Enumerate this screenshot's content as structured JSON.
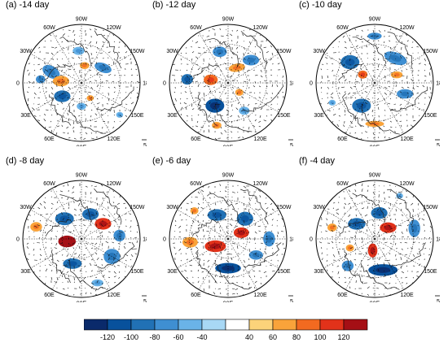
{
  "panels": [
    {
      "title": "(a) -14 day",
      "blobs": [
        {
          "r": 0.55,
          "a": 160,
          "rx": 0.16,
          "ry": 0.1,
          "rot": 30,
          "v": -60
        },
        {
          "r": 0.35,
          "a": 175,
          "rx": 0.14,
          "ry": 0.09,
          "rot": 0,
          "v": 60
        },
        {
          "r": 0.3,
          "a": 80,
          "rx": 0.08,
          "ry": 0.06,
          "rot": 0,
          "v": 60
        },
        {
          "r": 0.55,
          "a": 95,
          "rx": 0.1,
          "ry": 0.07,
          "rot": 0,
          "v": -40
        },
        {
          "r": 0.45,
          "a": 35,
          "rx": 0.15,
          "ry": 0.08,
          "rot": 20,
          "v": -60
        },
        {
          "r": 0.4,
          "a": 215,
          "rx": 0.14,
          "ry": 0.1,
          "rot": 0,
          "v": -80
        },
        {
          "r": 0.7,
          "a": 175,
          "rx": 0.08,
          "ry": 0.07,
          "rot": 0,
          "v": -60
        },
        {
          "r": 0.3,
          "a": 300,
          "rx": 0.06,
          "ry": 0.05,
          "rot": 0,
          "v": 60
        },
        {
          "r": 0.4,
          "a": 270,
          "rx": 0.08,
          "ry": 0.06,
          "rot": 0,
          "v": -40
        },
        {
          "r": 0.85,
          "a": 320,
          "rx": 0.06,
          "ry": 0.05,
          "rot": 0,
          "v": -40
        }
      ]
    },
    {
      "title": "(b) -12 day",
      "blobs": [
        {
          "r": 0.7,
          "a": 175,
          "rx": 0.1,
          "ry": 0.09,
          "rot": 0,
          "v": -80
        },
        {
          "r": 0.3,
          "a": 170,
          "rx": 0.12,
          "ry": 0.09,
          "rot": 0,
          "v": 80
        },
        {
          "r": 0.45,
          "a": 240,
          "rx": 0.16,
          "ry": 0.12,
          "rot": 0,
          "v": -100
        },
        {
          "r": 0.3,
          "a": 60,
          "rx": 0.14,
          "ry": 0.07,
          "rot": -10,
          "v": 60
        },
        {
          "r": 0.55,
          "a": 105,
          "rx": 0.12,
          "ry": 0.09,
          "rot": 0,
          "v": -60
        },
        {
          "r": 0.55,
          "a": 45,
          "rx": 0.14,
          "ry": 0.09,
          "rot": 0,
          "v": -60
        },
        {
          "r": 0.25,
          "a": 320,
          "rx": 0.07,
          "ry": 0.06,
          "rot": 0,
          "v": 60
        },
        {
          "r": 0.75,
          "a": 255,
          "rx": 0.08,
          "ry": 0.06,
          "rot": 0,
          "v": 60
        },
        {
          "r": 0.55,
          "a": 300,
          "rx": 0.09,
          "ry": 0.07,
          "rot": 0,
          "v": -40
        }
      ]
    },
    {
      "title": "(c) -10 day",
      "blobs": [
        {
          "r": 0.55,
          "a": 140,
          "rx": 0.16,
          "ry": 0.12,
          "rot": 0,
          "v": -80
        },
        {
          "r": 0.25,
          "a": 145,
          "rx": 0.08,
          "ry": 0.07,
          "rot": 0,
          "v": 80
        },
        {
          "r": 0.45,
          "a": 240,
          "rx": 0.16,
          "ry": 0.12,
          "rot": 0,
          "v": -80
        },
        {
          "r": 0.7,
          "a": 270,
          "rx": 0.16,
          "ry": 0.05,
          "rot": 0,
          "v": 60
        },
        {
          "r": 0.55,
          "a": 50,
          "rx": 0.2,
          "ry": 0.1,
          "rot": 20,
          "v": -60
        },
        {
          "r": 0.4,
          "a": 20,
          "rx": 0.1,
          "ry": 0.06,
          "rot": 0,
          "v": 60
        },
        {
          "r": 0.8,
          "a": 90,
          "rx": 0.12,
          "ry": 0.06,
          "rot": 0,
          "v": -60
        },
        {
          "r": 0.55,
          "a": 340,
          "rx": 0.14,
          "ry": 0.08,
          "rot": 0,
          "v": -60
        },
        {
          "r": 0.8,
          "a": 205,
          "rx": 0.06,
          "ry": 0.05,
          "rot": 0,
          "v": -40
        }
      ]
    },
    {
      "title": "(d) -8 day",
      "blobs": [
        {
          "r": 0.8,
          "a": 165,
          "rx": 0.1,
          "ry": 0.08,
          "rot": 0,
          "v": 60
        },
        {
          "r": 0.45,
          "a": 130,
          "rx": 0.16,
          "ry": 0.11,
          "rot": 0,
          "v": -80
        },
        {
          "r": 0.25,
          "a": 190,
          "rx": 0.15,
          "ry": 0.1,
          "rot": 0,
          "v": 120
        },
        {
          "r": 0.45,
          "a": 250,
          "rx": 0.16,
          "ry": 0.09,
          "rot": 0,
          "v": -80
        },
        {
          "r": 0.45,
          "a": 35,
          "rx": 0.14,
          "ry": 0.1,
          "rot": 0,
          "v": 100
        },
        {
          "r": 0.45,
          "a": 70,
          "rx": 0.14,
          "ry": 0.1,
          "rot": 0,
          "v": -80
        },
        {
          "r": 0.6,
          "a": 330,
          "rx": 0.14,
          "ry": 0.13,
          "rot": 0,
          "v": -60
        },
        {
          "r": 0.65,
          "a": 5,
          "rx": 0.1,
          "ry": 0.1,
          "rot": 0,
          "v": -60
        },
        {
          "r": 0.8,
          "a": 290,
          "rx": 0.1,
          "ry": 0.06,
          "rot": 0,
          "v": -40
        }
      ]
    },
    {
      "title": "(e) -6 day",
      "blobs": [
        {
          "r": 0.45,
          "a": 115,
          "rx": 0.16,
          "ry": 0.1,
          "rot": 0,
          "v": -80
        },
        {
          "r": 0.65,
          "a": 185,
          "rx": 0.13,
          "ry": 0.09,
          "rot": 0,
          "v": 60
        },
        {
          "r": 0.25,
          "a": 210,
          "rx": 0.18,
          "ry": 0.1,
          "rot": 0,
          "v": 100
        },
        {
          "r": 0.5,
          "a": 270,
          "rx": 0.22,
          "ry": 0.09,
          "rot": 0,
          "v": -100
        },
        {
          "r": 0.25,
          "a": 25,
          "rx": 0.13,
          "ry": 0.09,
          "rot": 0,
          "v": 100
        },
        {
          "r": 0.45,
          "a": 50,
          "rx": 0.14,
          "ry": 0.12,
          "rot": 0,
          "v": -80
        },
        {
          "r": 0.7,
          "a": 0,
          "rx": 0.1,
          "ry": 0.13,
          "rot": 0,
          "v": -60
        },
        {
          "r": 0.55,
          "a": 330,
          "rx": 0.12,
          "ry": 0.08,
          "rot": 0,
          "v": -60
        },
        {
          "r": 0.75,
          "a": 140,
          "rx": 0.07,
          "ry": 0.06,
          "rot": 0,
          "v": 60
        }
      ]
    },
    {
      "title": "(f) -4 day",
      "blobs": [
        {
          "r": 0.4,
          "a": 140,
          "rx": 0.15,
          "ry": 0.1,
          "rot": 0,
          "v": -80
        },
        {
          "r": 0.3,
          "a": 40,
          "rx": 0.14,
          "ry": 0.09,
          "rot": 0,
          "v": 100
        },
        {
          "r": 0.2,
          "a": 260,
          "rx": 0.08,
          "ry": 0.12,
          "rot": 0,
          "v": 100
        },
        {
          "r": 0.55,
          "a": 285,
          "rx": 0.25,
          "ry": 0.1,
          "rot": 0,
          "v": -100
        },
        {
          "r": 0.45,
          "a": 80,
          "rx": 0.14,
          "ry": 0.1,
          "rot": 0,
          "v": -80
        },
        {
          "r": 0.7,
          "a": 15,
          "rx": 0.1,
          "ry": 0.15,
          "rot": 0,
          "v": -60
        },
        {
          "r": 0.75,
          "a": 165,
          "rx": 0.08,
          "ry": 0.07,
          "rot": 0,
          "v": 60
        },
        {
          "r": 0.65,
          "a": 225,
          "rx": 0.1,
          "ry": 0.09,
          "rot": 0,
          "v": -60
        },
        {
          "r": 0.45,
          "a": 200,
          "rx": 0.07,
          "ry": 0.06,
          "rot": 0,
          "v": 60
        },
        {
          "r": 0.85,
          "a": 60,
          "rx": 0.06,
          "ry": 0.05,
          "rot": 0,
          "v": -40
        }
      ]
    }
  ],
  "lon_labels": [
    {
      "text": "90W",
      "a": 90
    },
    {
      "text": "120W",
      "a": 60
    },
    {
      "text": "150W",
      "a": 30
    },
    {
      "text": "180",
      "a": 0
    },
    {
      "text": "150E",
      "a": -30
    },
    {
      "text": "120E",
      "a": -60
    },
    {
      "text": "90E",
      "a": -90
    },
    {
      "text": "60E",
      "a": -120
    },
    {
      "text": "30E",
      "a": -150
    },
    {
      "text": "0",
      "a": 180
    },
    {
      "text": "30W",
      "a": 150
    },
    {
      "text": "60W",
      "a": 120
    }
  ],
  "ref_vector": "5",
  "colorbar": {
    "labels": [
      "-120",
      "-100",
      "-80",
      "-60",
      "-40",
      "40",
      "60",
      "80",
      "100",
      "120"
    ],
    "colors": [
      "#0a2a6b",
      "#08519c",
      "#2171b5",
      "#3f8fd2",
      "#6ab3e8",
      "#a8d8f5",
      "#ffffff",
      "#fcd37a",
      "#f9a33a",
      "#f26a20",
      "#e2321a",
      "#a50f15"
    ]
  }
}
